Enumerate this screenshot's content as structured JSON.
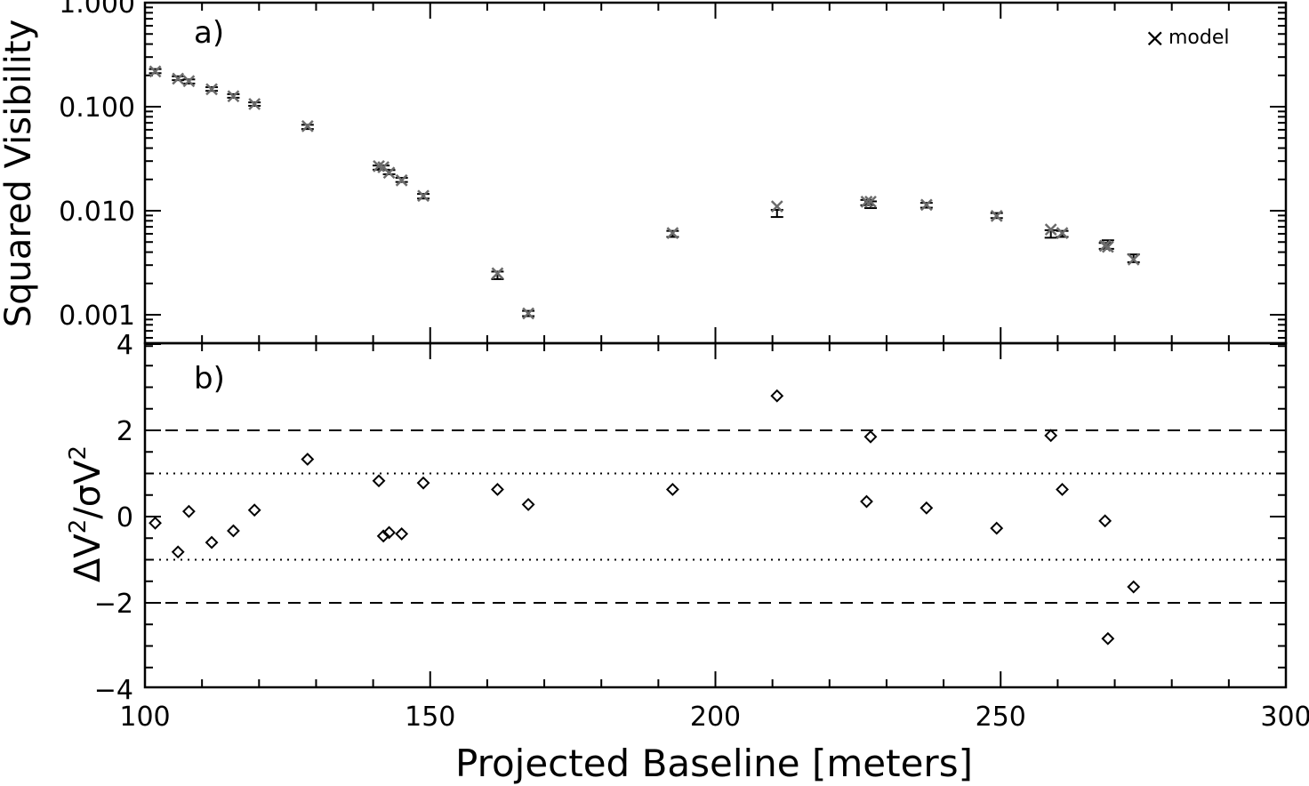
{
  "chart_data": [
    {
      "type": "scatter",
      "panel_label": "a)",
      "ylabel": "Squared Visibility",
      "yscale": "log",
      "ylim": [
        0.0005,
        1.0
      ],
      "xlim": [
        100,
        300
      ],
      "ytick_values": [
        0.001,
        0.01,
        0.1,
        1.0
      ],
      "ytick_labels": [
        "0.001",
        "0.010",
        "0.100",
        "1.000"
      ],
      "legend": {
        "label": "model",
        "marker": "×",
        "position": "top-right"
      },
      "data": {
        "x": [
          101.8,
          105.8,
          107.7,
          111.7,
          115.5,
          119.2,
          128.5,
          141.0,
          141.8,
          142.8,
          145.0,
          148.8,
          161.8,
          167.2,
          192.5,
          210.8,
          226.5,
          227.2,
          237.0,
          249.3,
          258.8,
          260.8,
          268.3,
          268.8,
          273.3
        ],
        "y": [
          0.22,
          0.188,
          0.175,
          0.148,
          0.127,
          0.106,
          0.064,
          0.026,
          0.026,
          0.0235,
          0.0198,
          0.0138,
          0.0024,
          0.00103,
          0.006,
          0.0095,
          0.012,
          0.0115,
          0.0113,
          0.009,
          0.006,
          0.006,
          0.0046,
          0.0048,
          0.0035
        ],
        "err_lo": [
          0.21,
          0.18,
          0.167,
          0.142,
          0.122,
          0.102,
          0.061,
          0.0248,
          0.0248,
          0.0224,
          0.0189,
          0.0131,
          0.0022,
          0.00097,
          0.0056,
          0.0087,
          0.0113,
          0.0106,
          0.0107,
          0.0085,
          0.0055,
          0.0056,
          0.0043,
          0.0043,
          0.0032
        ],
        "err_hi": [
          0.23,
          0.196,
          0.183,
          0.154,
          0.132,
          0.11,
          0.067,
          0.0272,
          0.0272,
          0.0246,
          0.0207,
          0.0145,
          0.0026,
          0.00109,
          0.0064,
          0.0102,
          0.0127,
          0.0123,
          0.0119,
          0.0095,
          0.0065,
          0.0064,
          0.0049,
          0.0052,
          0.0038
        ]
      },
      "model": {
        "x": [
          101.8,
          105.8,
          107.7,
          111.7,
          115.5,
          119.2,
          128.5,
          141.0,
          141.8,
          142.8,
          145.0,
          148.8,
          161.8,
          167.2,
          192.5,
          210.8,
          226.5,
          227.2,
          237.0,
          249.3,
          258.8,
          260.8,
          268.3,
          268.8,
          273.3
        ],
        "y": [
          0.218,
          0.186,
          0.176,
          0.147,
          0.126,
          0.106,
          0.065,
          0.0268,
          0.0262,
          0.0232,
          0.0196,
          0.0139,
          0.0025,
          0.00103,
          0.0061,
          0.011,
          0.0122,
          0.0122,
          0.0114,
          0.0089,
          0.0066,
          0.0061,
          0.0046,
          0.0045,
          0.0034
        ]
      }
    },
    {
      "type": "scatter",
      "panel_label": "b)",
      "ylabel": "ΔV²/σV²",
      "ylabel_parts": {
        "delta": "ΔV",
        "sup1": "2",
        "slash": "/σ",
        "v": "V",
        "sup2": "2"
      },
      "ylim": [
        -4.3,
        4.0
      ],
      "xlim": [
        100,
        300
      ],
      "ytick_values": [
        -4,
        -2,
        0,
        2,
        4
      ],
      "ytick_labels": [
        "−4",
        "−2",
        "0",
        "2",
        "4"
      ],
      "xtick_values": [
        100,
        150,
        200,
        250,
        300
      ],
      "xtick_labels": [
        "100",
        "150",
        "200",
        "250",
        "300"
      ],
      "xlabel": "Projected Baseline [meters]",
      "reference_lines": [
        {
          "y": 2,
          "style": "dashed"
        },
        {
          "y": -2,
          "style": "dashed"
        },
        {
          "y": 1,
          "style": "dotted"
        },
        {
          "y": -1,
          "style": "dotted"
        }
      ],
      "marker": "diamond",
      "x": [
        101.8,
        105.8,
        107.7,
        111.7,
        115.5,
        119.2,
        128.5,
        141.0,
        141.8,
        142.8,
        145.0,
        148.8,
        161.8,
        167.2,
        192.5,
        210.8,
        226.5,
        227.2,
        237.0,
        249.3,
        258.8,
        260.8,
        268.3,
        268.8,
        273.3
      ],
      "y": [
        -0.15,
        -0.82,
        0.12,
        -0.6,
        -0.33,
        0.15,
        1.33,
        0.83,
        -0.45,
        -0.37,
        -0.4,
        0.78,
        0.63,
        0.28,
        0.63,
        2.8,
        0.35,
        1.85,
        0.2,
        -0.27,
        1.88,
        0.63,
        -0.1,
        -2.83,
        -1.63
      ]
    }
  ]
}
